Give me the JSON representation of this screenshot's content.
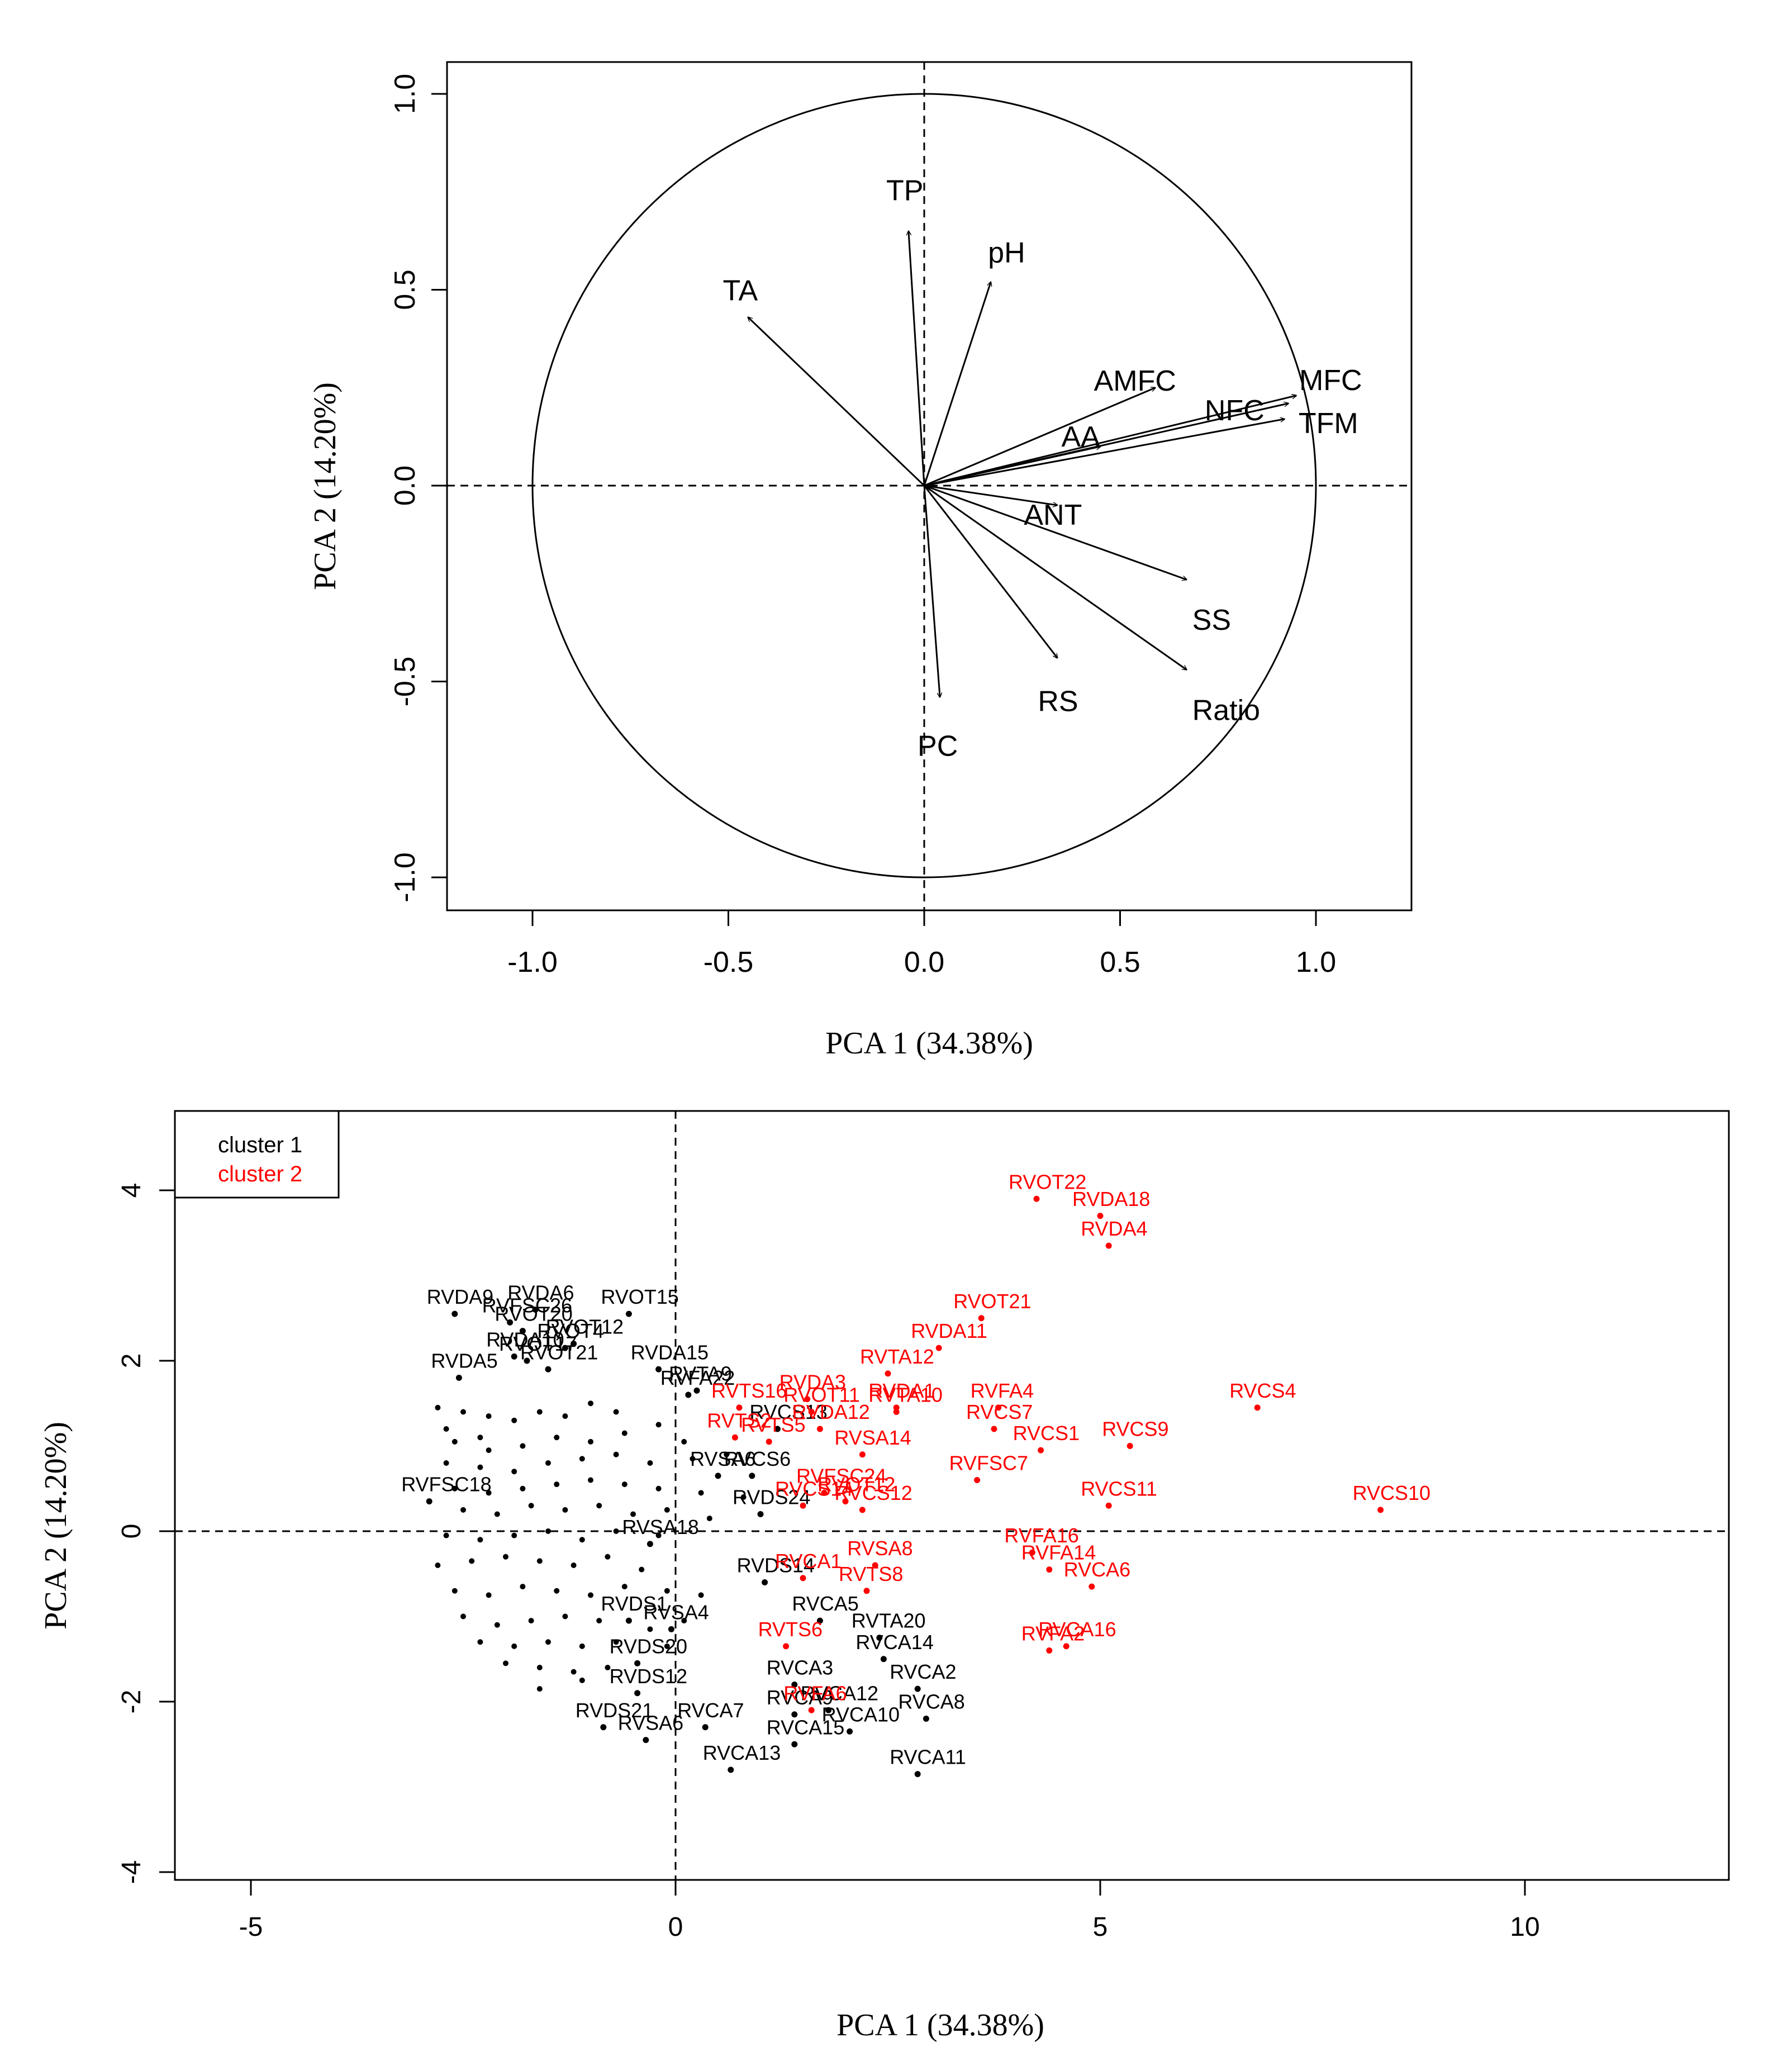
{
  "chart_data": [
    {
      "type": "scatter",
      "subtype": "pca-correlation-circle",
      "xlabel": "PCA 1 (34.38%)",
      "ylabel": "PCA 2 (14.20%)",
      "xlim": [
        -1.23,
        1.23
      ],
      "ylim": [
        -1.08,
        1.08
      ],
      "xticks": [
        -1.0,
        -0.5,
        0.0,
        0.5,
        1.0
      ],
      "yticks": [
        -1.0,
        -0.5,
        0.0,
        0.5,
        1.0
      ],
      "tick_labels_x": [
        "-1.0",
        "-0.5",
        "0.0",
        "0.5",
        "1.0"
      ],
      "tick_labels_y": [
        "-1.0",
        "-0.5",
        "0.0",
        "0.5",
        "1.0"
      ],
      "unit_circle": true,
      "reference_lines": [
        "x=0",
        "y=0"
      ],
      "vectors": [
        {
          "name": "TP",
          "x": -0.04,
          "y": 0.65
        },
        {
          "name": "pH",
          "x": 0.17,
          "y": 0.52
        },
        {
          "name": "TA",
          "x": -0.45,
          "y": 0.43
        },
        {
          "name": "AMFC",
          "x": 0.59,
          "y": 0.25
        },
        {
          "name": "MFC",
          "x": 0.95,
          "y": 0.23
        },
        {
          "name": "NFC",
          "x": 0.93,
          "y": 0.21
        },
        {
          "name": "TFM",
          "x": 0.92,
          "y": 0.17
        },
        {
          "name": "AA",
          "x": 0.45,
          "y": 0.1
        },
        {
          "name": "ANT",
          "x": 0.34,
          "y": -0.05
        },
        {
          "name": "SS",
          "x": 0.67,
          "y": -0.24
        },
        {
          "name": "RS",
          "x": 0.34,
          "y": -0.44
        },
        {
          "name": "Ratio",
          "x": 0.67,
          "y": -0.47
        },
        {
          "name": "PC",
          "x": 0.04,
          "y": -0.54
        }
      ]
    },
    {
      "type": "scatter",
      "xlabel": "PCA 1 (34.38%)",
      "ylabel": "PCA 2 (14.20%)",
      "xlim": [
        -6,
        12.3
      ],
      "ylim": [
        -4.0,
        5.0
      ],
      "xticks": [
        -5,
        0,
        5,
        10
      ],
      "yticks": [
        -4,
        -2,
        0,
        2,
        4
      ],
      "tick_labels_x": [
        "-5",
        "0",
        "5",
        "10"
      ],
      "tick_labels_y": [
        "-4",
        "-2",
        "0",
        "2",
        "4"
      ],
      "reference_lines": [
        "x=0",
        "y=0"
      ],
      "legend": {
        "position": "top-left",
        "entries": [
          "cluster 1",
          "cluster 2"
        ]
      },
      "colors": {
        "cluster 1": "#000000",
        "cluster 2": "#ff0000"
      },
      "series": [
        {
          "name": "cluster 1",
          "color": "#000000",
          "points": [
            {
              "label": "RVDA6",
              "x": -1.65,
              "y": 2.6
            },
            {
              "label": "RVDA9",
              "x": -2.6,
              "y": 2.55
            },
            {
              "label": "RVFSC26",
              "x": -1.95,
              "y": 2.45
            },
            {
              "label": "RVOT20",
              "x": -1.8,
              "y": 2.35
            },
            {
              "label": "RVOT15",
              "x": -0.55,
              "y": 2.55
            },
            {
              "label": "RVOT4",
              "x": -1.3,
              "y": 2.15
            },
            {
              "label": "RVOT12",
              "x": -1.2,
              "y": 2.2
            },
            {
              "label": "RVDA10",
              "x": -1.9,
              "y": 2.05
            },
            {
              "label": "RVOT17",
              "x": -1.75,
              "y": 2.0
            },
            {
              "label": "RVOT21",
              "x": -1.5,
              "y": 1.9
            },
            {
              "label": "RVDA15",
              "x": -0.2,
              "y": 1.9
            },
            {
              "label": "RVDA5",
              "x": -2.55,
              "y": 1.8
            },
            {
              "label": "RVTA9",
              "x": 0.25,
              "y": 1.65
            },
            {
              "label": "RVFA22",
              "x": 0.15,
              "y": 1.6
            },
            {
              "label": "RVCS13",
              "x": 1.2,
              "y": 1.2
            },
            {
              "label": "RVCS6",
              "x": 0.9,
              "y": 0.65
            },
            {
              "label": "RVSA6",
              "x": 0.5,
              "y": 0.65
            },
            {
              "label": "RVDS24",
              "x": 1.0,
              "y": 0.2
            },
            {
              "label": "RVFSC18",
              "x": -2.9,
              "y": 0.35
            },
            {
              "label": "RVSA18",
              "x": -0.3,
              "y": -0.15
            },
            {
              "label": "RVDS14",
              "x": 1.05,
              "y": -0.6
            },
            {
              "label": "RVCA5",
              "x": 1.7,
              "y": -1.05
            },
            {
              "label": "RVSA4",
              "x": -0.05,
              "y": -1.15
            },
            {
              "label": "RVTA20",
              "x": 2.4,
              "y": -1.25
            },
            {
              "label": "RVCA14",
              "x": 2.45,
              "y": -1.5
            },
            {
              "label": "RVCA3",
              "x": 1.4,
              "y": -1.8
            },
            {
              "label": "RVCA2",
              "x": 2.85,
              "y": -1.85
            },
            {
              "label": "RVDS12",
              "x": -0.45,
              "y": -1.9
            },
            {
              "label": "RVCA12",
              "x": 1.8,
              "y": -2.1
            },
            {
              "label": "RVCA8",
              "x": 2.95,
              "y": -2.2
            },
            {
              "label": "RVCA9",
              "x": 1.4,
              "y": -2.15
            },
            {
              "label": "RVCA7",
              "x": 0.35,
              "y": -2.3
            },
            {
              "label": "RVDS21",
              "x": -0.85,
              "y": -2.3
            },
            {
              "label": "RVSA6",
              "x": -0.35,
              "y": -2.45
            },
            {
              "label": "RVCA10",
              "x": 2.05,
              "y": -2.35
            },
            {
              "label": "RVCA15",
              "x": 1.4,
              "y": -2.5
            },
            {
              "label": "RVCA13",
              "x": 0.65,
              "y": -2.8
            },
            {
              "label": "RVCA11",
              "x": 2.85,
              "y": -2.85
            },
            {
              "label": "RVDS20",
              "x": -0.45,
              "y": -1.55
            },
            {
              "label": "RVDS1",
              "x": -0.55,
              "y": -1.05
            }
          ],
          "unlabeled_points": [
            [
              -2.8,
              1.45
            ],
            [
              -2.5,
              1.4
            ],
            [
              -2.2,
              1.35
            ],
            [
              -2.7,
              1.2
            ],
            [
              -2.3,
              1.1
            ],
            [
              -1.9,
              1.3
            ],
            [
              -1.6,
              1.4
            ],
            [
              -1.3,
              1.35
            ],
            [
              -1.0,
              1.5
            ],
            [
              -0.7,
              1.4
            ],
            [
              -2.6,
              1.05
            ],
            [
              -2.2,
              0.95
            ],
            [
              -1.8,
              1.0
            ],
            [
              -1.4,
              1.1
            ],
            [
              -1.0,
              1.05
            ],
            [
              -0.6,
              1.15
            ],
            [
              -0.2,
              1.25
            ],
            [
              0.1,
              1.05
            ],
            [
              -2.7,
              0.8
            ],
            [
              -2.3,
              0.75
            ],
            [
              -1.9,
              0.7
            ],
            [
              -1.5,
              0.8
            ],
            [
              -1.1,
              0.85
            ],
            [
              -0.7,
              0.9
            ],
            [
              -0.3,
              0.8
            ],
            [
              0.2,
              0.85
            ],
            [
              0.6,
              0.9
            ],
            [
              -2.6,
              0.5
            ],
            [
              -2.2,
              0.45
            ],
            [
              -1.8,
              0.5
            ],
            [
              -1.4,
              0.55
            ],
            [
              -1.0,
              0.6
            ],
            [
              -0.6,
              0.55
            ],
            [
              -0.2,
              0.5
            ],
            [
              0.3,
              0.45
            ],
            [
              0.8,
              0.4
            ],
            [
              -2.5,
              0.25
            ],
            [
              -2.1,
              0.2
            ],
            [
              -1.7,
              0.3
            ],
            [
              -1.3,
              0.25
            ],
            [
              -0.9,
              0.3
            ],
            [
              -0.5,
              0.2
            ],
            [
              -0.1,
              0.25
            ],
            [
              0.4,
              0.15
            ],
            [
              -2.7,
              -0.05
            ],
            [
              -2.3,
              -0.1
            ],
            [
              -1.9,
              -0.05
            ],
            [
              -1.5,
              0.0
            ],
            [
              -1.1,
              -0.1
            ],
            [
              -0.7,
              0.0
            ],
            [
              -0.2,
              -0.05
            ],
            [
              -2.8,
              -0.4
            ],
            [
              -2.4,
              -0.35
            ],
            [
              -2.0,
              -0.3
            ],
            [
              -1.6,
              -0.35
            ],
            [
              -1.2,
              -0.4
            ],
            [
              -0.8,
              -0.3
            ],
            [
              -0.4,
              -0.45
            ],
            [
              -2.6,
              -0.7
            ],
            [
              -2.2,
              -0.75
            ],
            [
              -1.8,
              -0.65
            ],
            [
              -1.4,
              -0.7
            ],
            [
              -1.0,
              -0.75
            ],
            [
              -0.6,
              -0.65
            ],
            [
              -0.1,
              -0.7
            ],
            [
              0.3,
              -0.75
            ],
            [
              -2.5,
              -1.0
            ],
            [
              -2.1,
              -1.1
            ],
            [
              -1.7,
              -1.05
            ],
            [
              -1.3,
              -1.0
            ],
            [
              -0.9,
              -1.05
            ],
            [
              -0.3,
              -1.15
            ],
            [
              0.1,
              -1.05
            ],
            [
              -2.3,
              -1.3
            ],
            [
              -1.9,
              -1.35
            ],
            [
              -1.5,
              -1.3
            ],
            [
              -1.1,
              -1.35
            ],
            [
              -0.7,
              -1.3
            ],
            [
              -0.1,
              -1.35
            ],
            [
              -2.0,
              -1.55
            ],
            [
              -1.6,
              -1.6
            ],
            [
              -1.2,
              -1.65
            ],
            [
              -0.8,
              -1.6
            ],
            [
              -1.6,
              -1.85
            ],
            [
              -1.1,
              -1.75
            ]
          ]
        },
        {
          "name": "cluster 2",
          "color": "#ff0000",
          "points": [
            {
              "label": "RVOT22",
              "x": 4.25,
              "y": 3.9
            },
            {
              "label": "RVDA18",
              "x": 5.0,
              "y": 3.7
            },
            {
              "label": "RVDA4",
              "x": 5.1,
              "y": 3.35
            },
            {
              "label": "RVOT21",
              "x": 3.6,
              "y": 2.5
            },
            {
              "label": "RVDA11",
              "x": 3.1,
              "y": 2.15
            },
            {
              "label": "RVTA12",
              "x": 2.5,
              "y": 1.85
            },
            {
              "label": "RVDA3",
              "x": 1.55,
              "y": 1.55
            },
            {
              "label": "RVDA1",
              "x": 2.6,
              "y": 1.45
            },
            {
              "label": "RVCS4",
              "x": 6.85,
              "y": 1.45
            },
            {
              "label": "RVTS16",
              "x": 0.75,
              "y": 1.45
            },
            {
              "label": "RVOT11",
              "x": 1.6,
              "y": 1.4
            },
            {
              "label": "RVTA10",
              "x": 2.6,
              "y": 1.4
            },
            {
              "label": "RVFA4",
              "x": 3.8,
              "y": 1.45
            },
            {
              "label": "RVCS7",
              "x": 3.75,
              "y": 1.2
            },
            {
              "label": "RVCS9",
              "x": 5.35,
              "y": 1.0
            },
            {
              "label": "RVDA12",
              "x": 1.7,
              "y": 1.2
            },
            {
              "label": "RVTS2",
              "x": 0.7,
              "y": 1.1
            },
            {
              "label": "RVTS5",
              "x": 1.1,
              "y": 1.05
            },
            {
              "label": "RVSA14",
              "x": 2.2,
              "y": 0.9
            },
            {
              "label": "RVCS1",
              "x": 4.3,
              "y": 0.95
            },
            {
              "label": "RVFSC7",
              "x": 3.55,
              "y": 0.6
            },
            {
              "label": "RVCS11",
              "x": 5.1,
              "y": 0.3
            },
            {
              "label": "RVCS10",
              "x": 8.3,
              "y": 0.25
            },
            {
              "label": "RVFSC24",
              "x": 1.75,
              "y": 0.45
            },
            {
              "label": "RVOT12",
              "x": 2.0,
              "y": 0.35
            },
            {
              "label": "RVCS12",
              "x": 2.2,
              "y": 0.25
            },
            {
              "label": "RVCS14",
              "x": 1.5,
              "y": 0.3
            },
            {
              "label": "RVFA16",
              "x": 4.2,
              "y": -0.25
            },
            {
              "label": "RVFA14",
              "x": 4.4,
              "y": -0.45
            },
            {
              "label": "RVCA6",
              "x": 4.9,
              "y": -0.65
            },
            {
              "label": "RVCA1",
              "x": 1.5,
              "y": -0.55
            },
            {
              "label": "RVSA8",
              "x": 2.35,
              "y": -0.4
            },
            {
              "label": "RVTS8",
              "x": 2.25,
              "y": -0.7
            },
            {
              "label": "RVTS6",
              "x": 1.3,
              "y": -1.35
            },
            {
              "label": "RVCA16",
              "x": 4.6,
              "y": -1.35
            },
            {
              "label": "RVFA2",
              "x": 4.4,
              "y": -1.4
            },
            {
              "label": "RVFA6",
              "x": 1.6,
              "y": -2.1
            }
          ]
        }
      ]
    }
  ]
}
